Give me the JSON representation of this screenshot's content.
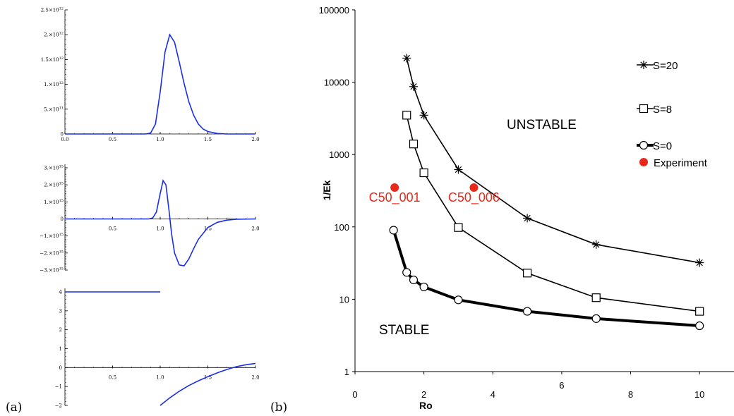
{
  "labels": {
    "panel_a": "(a)",
    "panel_b": "(b)"
  },
  "colors": {
    "curve_a": "#1a2ee6",
    "experiment": "#e8281a",
    "series": "#000000"
  },
  "panel_a": {
    "plot1": {
      "x_ticks": [
        "0.0",
        "0.5",
        "1.0",
        "1.5",
        "2.0"
      ],
      "y_ticks": [
        {
          "v": 0,
          "m": "0",
          "e": ""
        },
        {
          "v": 0.5,
          "m": "5.×10",
          "e": "11"
        },
        {
          "v": 1.0,
          "m": "1.×10",
          "e": "12"
        },
        {
          "v": 1.5,
          "m": "1.5×10",
          "e": "12"
        },
        {
          "v": 2.0,
          "m": "2.×10",
          "e": "12"
        },
        {
          "v": 2.5,
          "m": "2.5×10",
          "e": "12"
        }
      ]
    },
    "plot2": {
      "x_ticks": [
        "0.5",
        "1.0",
        "1.5",
        "2.0"
      ],
      "y_ticks": [
        {
          "v": 3,
          "m": "3.×10",
          "e": "15"
        },
        {
          "v": 2,
          "m": "2.×10",
          "e": "15"
        },
        {
          "v": 1,
          "m": "1.×10",
          "e": "15"
        },
        {
          "v": 0,
          "m": "0",
          "e": ""
        },
        {
          "v": -1,
          "m": "−1.×10",
          "e": "15"
        },
        {
          "v": -2,
          "m": "−2.×10",
          "e": "15"
        },
        {
          "v": -3,
          "m": "−3.×10",
          "e": "15"
        }
      ]
    },
    "plot3": {
      "x_ticks": [
        "0.5",
        "1.0",
        "1.5",
        "2.0"
      ],
      "y_ticks": [
        "4",
        "3",
        "2",
        "1",
        "0",
        "−1",
        "−2"
      ]
    }
  },
  "chart_data": [
    {
      "type": "line",
      "panel": "a-top",
      "xlim": [
        0,
        2.0
      ],
      "ylim": [
        0,
        2500000000000.0
      ],
      "series": [
        {
          "x": [
            0.0,
            0.5,
            0.85,
            0.9,
            0.95,
            1.0,
            1.05,
            1.1,
            1.15,
            1.2,
            1.25,
            1.3,
            1.35,
            1.4,
            1.45,
            1.5,
            1.6,
            1.7,
            2.0
          ],
          "y": [
            0,
            0,
            0,
            20000000000.0,
            200000000000.0,
            850000000000.0,
            1650000000000.0,
            2000000000000.0,
            1850000000000.0,
            1450000000000.0,
            1020000000000.0,
            650000000000.0,
            380000000000.0,
            200000000000.0,
            100000000000.0,
            50000000000.0,
            10000000000.0,
            0,
            0
          ]
        }
      ]
    },
    {
      "type": "line",
      "panel": "a-middle",
      "xlim": [
        0,
        2.0
      ],
      "ylim": [
        -3000000000000000.0,
        3000000000000000.0
      ],
      "series": [
        {
          "x": [
            0.0,
            0.5,
            0.88,
            0.92,
            0.96,
            1.0,
            1.03,
            1.06,
            1.09,
            1.12,
            1.15,
            1.2,
            1.25,
            1.3,
            1.35,
            1.4,
            1.5,
            1.6,
            1.7,
            1.8,
            2.0
          ],
          "y": [
            0,
            0,
            0,
            50000000000000.0,
            400000000000000.0,
            1500000000000000.0,
            2250000000000000.0,
            2000000000000000.0,
            600000000000000.0,
            -900000000000000.0,
            -2000000000000000.0,
            -2700000000000000.0,
            -2750000000000000.0,
            -2350000000000000.0,
            -1750000000000000.0,
            -1200000000000000.0,
            -500000000000000.0,
            -200000000000000.0,
            -70000000000000.0,
            -20000000000000.0,
            0
          ]
        }
      ]
    },
    {
      "type": "line",
      "panel": "a-bottom",
      "xlim": [
        0,
        2.0
      ],
      "ylim": [
        -2,
        4
      ],
      "series": [
        {
          "x": [
            0.0,
            1.0
          ],
          "y": [
            4,
            4
          ]
        },
        {
          "x": [
            1.0,
            1.1,
            1.2,
            1.3,
            1.4,
            1.5,
            1.6,
            1.7,
            1.8,
            1.9,
            2.0
          ],
          "y": [
            -2.0,
            -1.6,
            -1.25,
            -0.95,
            -0.7,
            -0.48,
            -0.28,
            -0.1,
            0.05,
            0.15,
            0.22
          ]
        }
      ]
    },
    {
      "type": "line",
      "panel": "b",
      "xlabel": "Ro",
      "ylabel": "1/Ek",
      "xlim": [
        0,
        11
      ],
      "ylim": [
        1,
        100000
      ],
      "yscale": "log",
      "x_ticks": [
        0,
        2,
        4,
        6,
        8,
        10
      ],
      "y_ticks": [
        "1",
        "10",
        "100",
        "1000",
        "10000",
        "100000"
      ],
      "series": [
        {
          "name": "S=20",
          "marker": "asterisk",
          "x": [
            1.5,
            1.7,
            2,
            3,
            5,
            7,
            10
          ],
          "y": [
            21500,
            8700,
            3500,
            620,
            132,
            57,
            32
          ]
        },
        {
          "name": "S=8",
          "marker": "square",
          "x": [
            1.5,
            1.7,
            2,
            3,
            5,
            7,
            10
          ],
          "y": [
            3500,
            1400,
            560,
            98,
            23,
            10.5,
            6.8
          ]
        },
        {
          "name": "S=0",
          "marker": "circle",
          "x": [
            1.12,
            1.5,
            1.7,
            2,
            3,
            5,
            7,
            10
          ],
          "y": [
            90,
            23.5,
            18.5,
            14.8,
            9.8,
            6.8,
            5.4,
            4.3
          ]
        }
      ],
      "experiment": {
        "name": "Experiment",
        "points": [
          {
            "label": "C50_001",
            "x": 1.15,
            "y": 350
          },
          {
            "label": "C50_006",
            "x": 3.45,
            "y": 350
          }
        ]
      },
      "annotations": [
        "UNSTABLE",
        "STABLE"
      ],
      "legend_position": "top-right"
    }
  ]
}
